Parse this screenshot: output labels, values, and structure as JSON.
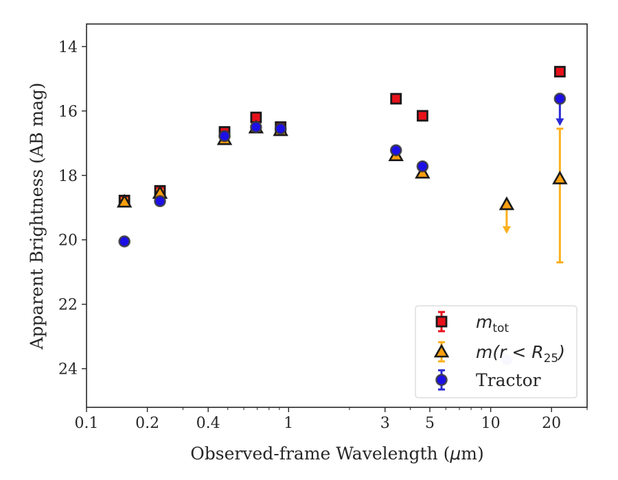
{
  "chart_data": {
    "type": "scatter",
    "xlabel_main": "Observed-frame Wavelength (",
    "xlabel_unit": "μ",
    "xlabel_tail": "m)",
    "ylabel": "Apparent Brightness (AB mag)",
    "xscale": "log",
    "xlim": [
      0.1,
      30
    ],
    "ylim": [
      25.2,
      13.3
    ],
    "y_inverted": true,
    "xticks": [
      {
        "value": 0.1,
        "label": "0.1"
      },
      {
        "value": 0.2,
        "label": "0.2"
      },
      {
        "value": 0.4,
        "label": "0.4"
      },
      {
        "value": 1,
        "label": "1"
      },
      {
        "value": 3,
        "label": "3"
      },
      {
        "value": 5,
        "label": "5"
      },
      {
        "value": 10,
        "label": "10"
      },
      {
        "value": 20,
        "label": "20"
      }
    ],
    "yticks": [
      {
        "value": 14,
        "label": "14"
      },
      {
        "value": 16,
        "label": "16"
      },
      {
        "value": 18,
        "label": "18"
      },
      {
        "value": 20,
        "label": "20"
      },
      {
        "value": 22,
        "label": "22"
      },
      {
        "value": 24,
        "label": "24"
      }
    ],
    "legend_position": "lower-right",
    "series": [
      {
        "key": "mtot",
        "legend_main": "m",
        "legend_sub": "tot",
        "legend_tail": "",
        "marker": "square",
        "face": "#e8111a",
        "errcolor": "#e8111a",
        "points": [
          {
            "x": 0.154,
            "y": 18.78,
            "yerr": 0.1
          },
          {
            "x": 0.231,
            "y": 18.48,
            "yerr": 0.1
          },
          {
            "x": 0.482,
            "y": 16.65,
            "yerr": 0.05
          },
          {
            "x": 0.69,
            "y": 16.2,
            "yerr": 0.05
          },
          {
            "x": 0.913,
            "y": 16.5,
            "yerr": 0.05
          },
          {
            "x": 3.4,
            "y": 15.62,
            "yerr": 0.03
          },
          {
            "x": 4.6,
            "y": 16.15,
            "yerr": 0.03
          },
          {
            "x": 22.0,
            "y": 14.78,
            "yerr": 0.05
          }
        ]
      },
      {
        "key": "m_r25",
        "legend_main": "m(r < R",
        "legend_sub": "25",
        "legend_tail": ")",
        "marker": "triangle",
        "face": "#ff9f0f",
        "errcolor": "#fbb01c",
        "points": [
          {
            "x": 0.154,
            "y": 18.82,
            "yerr": 0.1
          },
          {
            "x": 0.231,
            "y": 18.55,
            "yerr": 0.1
          },
          {
            "x": 0.482,
            "y": 16.88,
            "yerr": 0.05
          },
          {
            "x": 0.69,
            "y": 16.52,
            "yerr": 0.05
          },
          {
            "x": 0.913,
            "y": 16.6,
            "yerr": 0.05
          },
          {
            "x": 3.4,
            "y": 17.38,
            "yerr": 0.05
          },
          {
            "x": 4.6,
            "y": 17.92,
            "yerr": 0.05
          },
          {
            "x": 12.0,
            "y": 18.9,
            "upper_limit_to": 19.75
          },
          {
            "x": 22.0,
            "y": 18.1,
            "yerr_low": 1.55,
            "yerr_high": 2.6
          }
        ]
      },
      {
        "key": "tractor",
        "legend_main": "Tractor",
        "legend_sub": "",
        "legend_tail": "",
        "marker": "circle",
        "face": "#1d10e6",
        "errcolor": "#2a2ad6",
        "points": [
          {
            "x": 0.154,
            "y": 20.05,
            "yerr": 0.05
          },
          {
            "x": 0.231,
            "y": 18.8,
            "yerr": 0.05
          },
          {
            "x": 0.482,
            "y": 16.78,
            "yerr": 0.05
          },
          {
            "x": 0.69,
            "y": 16.5,
            "yerr": 0.05
          },
          {
            "x": 0.913,
            "y": 16.55,
            "yerr": 0.05
          },
          {
            "x": 3.4,
            "y": 17.22,
            "yerr": 0.05
          },
          {
            "x": 4.6,
            "y": 17.72,
            "yerr": 0.05
          },
          {
            "x": 12.0,
            "y": 23.72,
            "faint": true
          },
          {
            "x": 22.0,
            "y": 15.62,
            "upper_limit_to": 16.4
          }
        ]
      }
    ]
  }
}
